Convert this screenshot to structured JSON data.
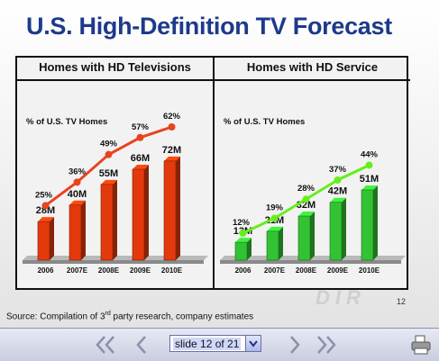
{
  "slide": {
    "title": "U.S. High-Definition TV Forecast",
    "source_prefix": "Source: Compilation of 3",
    "source_sup": "rd",
    "source_suffix": " party research, company estimates",
    "page_number": "12",
    "watermark": "DIR"
  },
  "colors": {
    "title": "#1d3a8a",
    "left_bar": "#e23a0c",
    "left_line": "#e8431f",
    "right_bar": "#33c233",
    "right_line": "#66ee1c"
  },
  "chart_data": [
    {
      "type": "bar",
      "title": "Homes with HD Televisions",
      "categories": [
        "2006",
        "2007E",
        "2008E",
        "2009E",
        "2010E"
      ],
      "series": [
        {
          "values": [
            28,
            40,
            55,
            66,
            72
          ],
          "labels": [
            "28M",
            "40M",
            "55M",
            "66M",
            "72M"
          ]
        }
      ],
      "line": {
        "name": "% of U.S. TV Homes",
        "values": [
          25,
          36,
          49,
          57,
          62
        ],
        "labels": [
          "25%",
          "36%",
          "49%",
          "57%",
          "62%"
        ]
      },
      "color": "#e23a0c",
      "line_color": "#e8431f"
    },
    {
      "type": "bar",
      "title": "Homes with HD Service",
      "categories": [
        "2006",
        "2007E",
        "2008E",
        "2009E",
        "2010E"
      ],
      "series": [
        {
          "values": [
            13,
            21,
            32,
            42,
            51
          ],
          "labels": [
            "13M",
            "21M",
            "32M",
            "42M",
            "51M"
          ]
        }
      ],
      "line": {
        "name": "% of U.S. TV Homes",
        "values": [
          12,
          19,
          28,
          37,
          44
        ],
        "labels": [
          "12%",
          "19%",
          "28%",
          "37%",
          "44%"
        ]
      },
      "color": "#33c233",
      "line_color": "#66ee1c"
    }
  ],
  "nav": {
    "slide_label": "slide 12 of 21"
  }
}
